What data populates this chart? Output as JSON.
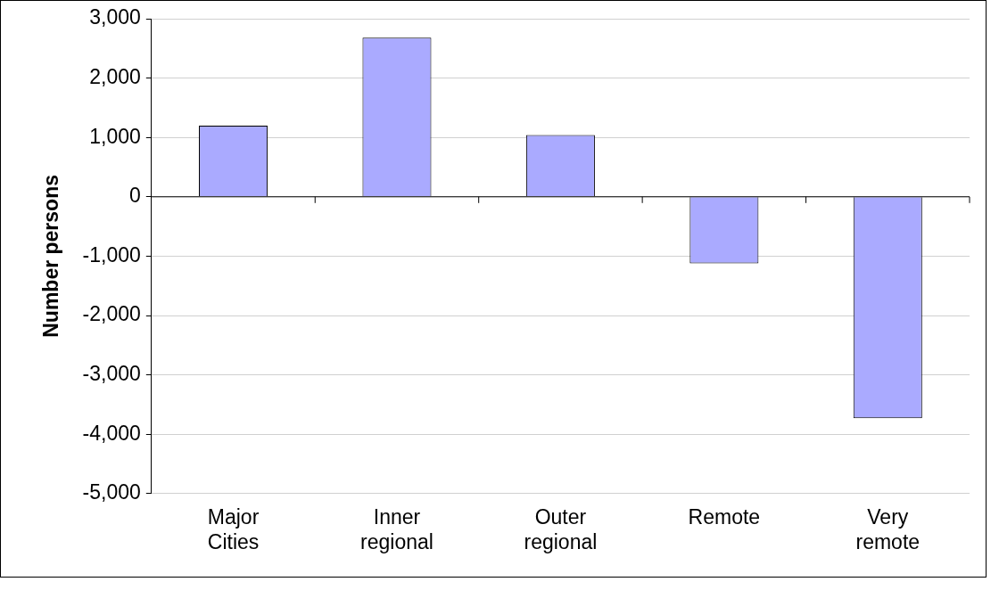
{
  "chart_data": {
    "type": "bar",
    "ylabel": "Number persons",
    "categories": [
      "Major Cities",
      "Inner regional",
      "Outer regional",
      "Remote",
      "Very remote"
    ],
    "values": [
      1200,
      2680,
      1040,
      -1120,
      -3730
    ],
    "color": "#aaaaff",
    "ylim": [
      -5000,
      3000
    ],
    "yticks": [
      {
        "value": -5000,
        "label": "-5,000"
      },
      {
        "value": -4000,
        "label": "-4,000"
      },
      {
        "value": -3000,
        "label": "-3,000"
      },
      {
        "value": -2000,
        "label": "-2,000"
      },
      {
        "value": -1000,
        "label": "-1,000"
      },
      0,
      {
        "value": 1000,
        "label": "1,000"
      },
      {
        "value": 2000,
        "label": "2,000"
      },
      {
        "value": 3000,
        "label": "3,000"
      }
    ],
    "grid": "y",
    "legend": false
  }
}
